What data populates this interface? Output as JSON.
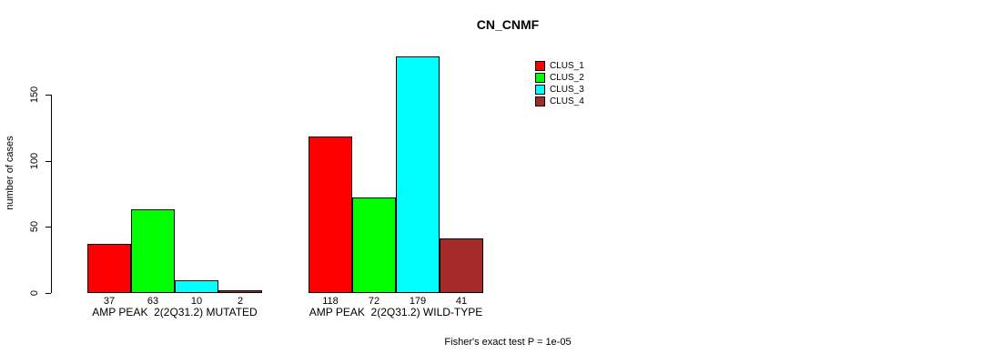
{
  "chart_data": {
    "type": "bar",
    "title": "CN_CNMF",
    "ylabel": "number of cases",
    "footnote": "Fisher's exact test P = 1e-05",
    "yticks": [
      0,
      50,
      100,
      150
    ],
    "ylim": [
      0,
      150
    ],
    "grid": false,
    "legend_position": "top-right",
    "categories": [
      "AMP PEAK  2(2Q31.2) MUTATED",
      "AMP PEAK  2(2Q31.2) WILD-TYPE"
    ],
    "groups": [
      {
        "label": "AMP PEAK  2(2Q31.2) MUTATED",
        "values": [
          37,
          63,
          10,
          2
        ]
      },
      {
        "label": "AMP PEAK  2(2Q31.2) WILD-TYPE",
        "values": [
          118,
          72,
          179,
          41
        ]
      }
    ],
    "series": [
      {
        "name": "CLUS_1",
        "color": "#ff0000"
      },
      {
        "name": "CLUS_2",
        "color": "#00ff00"
      },
      {
        "name": "CLUS_3",
        "color": "#00ffff"
      },
      {
        "name": "CLUS_4",
        "color": "#a52a2a"
      }
    ]
  }
}
